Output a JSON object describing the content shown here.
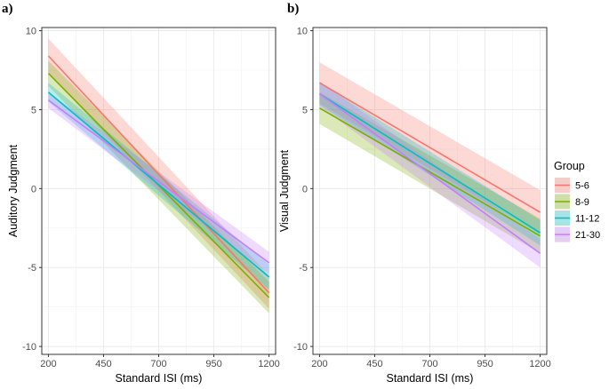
{
  "chart_data": [
    {
      "type": "line",
      "panel_label": "a)",
      "title": "",
      "xlabel": "Standard ISI (ms)",
      "ylabel": "Auditory Judgment",
      "xlim": [
        170,
        1230
      ],
      "ylim": [
        -10.5,
        10.2
      ],
      "xticks": [
        200,
        450,
        700,
        950,
        1200
      ],
      "yticks": [
        -10,
        -5,
        0,
        5,
        10
      ],
      "xtick_labels": [
        "200",
        "450",
        "700",
        "950",
        "1200"
      ],
      "ytick_labels": [
        "-10",
        "-5",
        "0",
        "5",
        "10"
      ],
      "grid": true,
      "x": [
        200,
        1200
      ],
      "series": [
        {
          "name": "5-6",
          "values": [
            8.4,
            -6.6
          ],
          "ci_lower": [
            7.3,
            -7.6
          ],
          "ci_upper": [
            9.5,
            -5.5
          ]
        },
        {
          "name": "8-9",
          "values": [
            7.3,
            -6.9
          ],
          "ci_lower": [
            6.5,
            -7.9
          ],
          "ci_upper": [
            8.1,
            -5.9
          ]
        },
        {
          "name": "11-12",
          "values": [
            6.1,
            -5.6
          ],
          "ci_lower": [
            5.5,
            -6.4
          ],
          "ci_upper": [
            6.7,
            -4.8
          ]
        },
        {
          "name": "21-30",
          "values": [
            5.6,
            -4.7
          ],
          "ci_lower": [
            5.1,
            -5.4
          ],
          "ci_upper": [
            6.1,
            -4.0
          ]
        }
      ]
    },
    {
      "type": "line",
      "panel_label": "b)",
      "title": "",
      "xlabel": "Standard ISI (ms)",
      "ylabel": "Visual Judgment",
      "xlim": [
        170,
        1230
      ],
      "ylim": [
        -10.5,
        10.2
      ],
      "xticks": [
        200,
        450,
        700,
        950,
        1200
      ],
      "yticks": [
        -10,
        -5,
        0,
        5,
        10
      ],
      "xtick_labels": [
        "200",
        "450",
        "700",
        "950",
        "1200"
      ],
      "ytick_labels": [
        "-10",
        "-5",
        "0",
        "5",
        "10"
      ],
      "grid": true,
      "x": [
        200,
        1200
      ],
      "series": [
        {
          "name": "5-6",
          "values": [
            6.7,
            -1.5
          ],
          "ci_lower": [
            5.4,
            -2.9
          ],
          "ci_upper": [
            8.0,
            -0.1
          ]
        },
        {
          "name": "8-9",
          "values": [
            5.1,
            -3.0
          ],
          "ci_lower": [
            4.1,
            -4.1
          ],
          "ci_upper": [
            6.1,
            -1.9
          ]
        },
        {
          "name": "11-12",
          "values": [
            6.0,
            -2.8
          ],
          "ci_lower": [
            5.3,
            -3.6
          ],
          "ci_upper": [
            6.7,
            -2.0
          ]
        },
        {
          "name": "21-30",
          "values": [
            6.0,
            -4.1
          ],
          "ci_lower": [
            5.2,
            -5.0
          ],
          "ci_upper": [
            6.8,
            -3.2
          ]
        }
      ]
    }
  ],
  "legend": {
    "title": "Group",
    "position": "right",
    "entries": [
      "5-6",
      "8-9",
      "11-12",
      "21-30"
    ]
  },
  "colors": {
    "5-6": "#F8766D",
    "8-9": "#7CAE00",
    "11-12": "#00BFC4",
    "21-30": "#C77CFF"
  }
}
